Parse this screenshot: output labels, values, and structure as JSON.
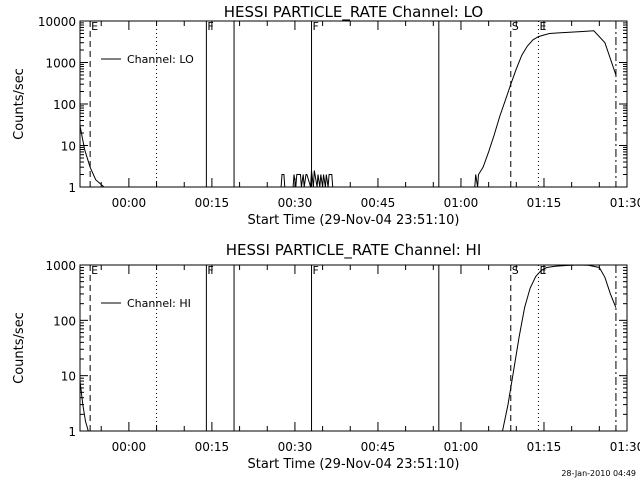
{
  "footer": {
    "timestamp": "28-Jan-2010 04:49"
  },
  "chart_data": [
    {
      "type": "line",
      "title": "HESSI PARTICLE_RATE Channel: LO",
      "xlabel": "Start Time (29-Nov-04 23:51:10)",
      "ylabel": "Counts/sec",
      "y_scale": "log",
      "ylim": [
        1,
        10000
      ],
      "xlim": [
        "23:51:10",
        "01:30"
      ],
      "x_ticks": [
        "00:00",
        "00:15",
        "00:30",
        "00:45",
        "01:00",
        "01:15",
        "01:30"
      ],
      "y_ticks": [
        "1",
        "10",
        "100",
        "1000",
        "10000"
      ],
      "legend": {
        "position": "top-left",
        "entries": [
          "Channel: LO"
        ]
      },
      "grid": false,
      "markers": [
        {
          "time": "23:53",
          "style": "dash",
          "label": "E"
        },
        {
          "time": "00:05",
          "style": "dotted",
          "label": ""
        },
        {
          "time": "00:14",
          "style": "solid",
          "label": "F"
        },
        {
          "time": "00:19",
          "style": "solid",
          "label": ""
        },
        {
          "time": "00:33",
          "style": "solid",
          "label": "F"
        },
        {
          "time": "00:56",
          "style": "solid",
          "label": ""
        },
        {
          "time": "01:09",
          "style": "dash",
          "label": "S"
        },
        {
          "time": "01:14",
          "style": "dotted",
          "label": "E"
        },
        {
          "time": "01:28",
          "style": "dashdot",
          "label": ""
        }
      ],
      "series": [
        {
          "x": [
            "23:51:10",
            "23:52",
            "23:53",
            "23:54",
            "23:55:30",
            "00:27:30",
            "00:27:40",
            "00:28:00",
            "00:28:10",
            "00:29:40",
            "00:29:50",
            "00:30:10",
            "00:30:20",
            "00:31:00",
            "00:31:10",
            "00:31:30",
            "00:31:40",
            "00:32:00",
            "00:32:10",
            "00:32:50",
            "00:33:00",
            "00:33:20",
            "00:33:30",
            "00:34:00",
            "00:34:10",
            "00:34:30",
            "00:34:40",
            "00:35:00",
            "00:35:10",
            "00:35:30",
            "00:35:40",
            "00:36:00",
            "00:36:10",
            "00:36:40",
            "00:36:50",
            "01:02:30",
            "01:02:40",
            "01:03:00",
            "01:03:10",
            "01:04",
            "01:05",
            "01:06",
            "01:07",
            "01:08",
            "01:09",
            "01:10",
            "01:11",
            "01:12",
            "01:13",
            "01:14",
            "01:15",
            "01:16",
            "01:18",
            "01:20",
            "01:22",
            "01:24",
            "01:26",
            "01:28"
          ],
          "y": [
            30,
            8,
            3,
            1.5,
            1,
            1,
            2,
            2,
            1,
            1,
            2,
            1,
            2,
            2,
            1,
            2,
            1,
            2,
            2,
            1,
            2.5,
            1,
            2.5,
            1,
            2,
            1,
            2,
            1,
            2,
            1,
            2,
            1,
            2,
            2,
            1,
            1,
            2,
            1,
            2,
            3,
            7,
            18,
            50,
            120,
            300,
            700,
            1500,
            2500,
            3500,
            4200,
            4600,
            5000,
            5200,
            5400,
            5600,
            5800,
            3000,
            500
          ]
        }
      ]
    },
    {
      "type": "line",
      "title": "HESSI PARTICLE_RATE Channel: HI",
      "xlabel": "Start Time (29-Nov-04 23:51:10)",
      "ylabel": "Counts/sec",
      "y_scale": "log",
      "ylim": [
        1,
        1000
      ],
      "xlim": [
        "23:51:10",
        "01:30"
      ],
      "x_ticks": [
        "00:00",
        "00:15",
        "00:30",
        "00:45",
        "01:00",
        "01:15",
        "01:30"
      ],
      "y_ticks": [
        "1",
        "10",
        "100",
        "1000"
      ],
      "legend": {
        "position": "top-left",
        "entries": [
          "Channel: HI"
        ]
      },
      "grid": false,
      "markers": [
        {
          "time": "23:53",
          "style": "dash",
          "label": "E"
        },
        {
          "time": "00:05",
          "style": "dotted",
          "label": ""
        },
        {
          "time": "00:14",
          "style": "solid",
          "label": "F"
        },
        {
          "time": "00:19",
          "style": "solid",
          "label": ""
        },
        {
          "time": "00:33",
          "style": "solid",
          "label": "F"
        },
        {
          "time": "00:56",
          "style": "solid",
          "label": ""
        },
        {
          "time": "01:09",
          "style": "dash",
          "label": "S"
        },
        {
          "time": "01:14",
          "style": "dotted",
          "label": "E"
        },
        {
          "time": "01:28",
          "style": "dashdot",
          "label": ""
        }
      ],
      "series": [
        {
          "x": [
            "23:51:10",
            "23:51:40",
            "23:52:10",
            "23:52:40",
            "01:07:30",
            "01:08:30",
            "01:09:30",
            "01:10:30",
            "01:11:30",
            "01:12:30",
            "01:13:30",
            "01:14:30",
            "01:15:30",
            "01:17",
            "01:19",
            "01:21",
            "01:23",
            "01:25",
            "01:26",
            "01:27",
            "01:28"
          ],
          "y": [
            8,
            3,
            1.5,
            1,
            1,
            3,
            12,
            50,
            170,
            380,
            620,
            800,
            900,
            950,
            980,
            1000,
            990,
            900,
            600,
            300,
            170
          ]
        }
      ]
    }
  ]
}
